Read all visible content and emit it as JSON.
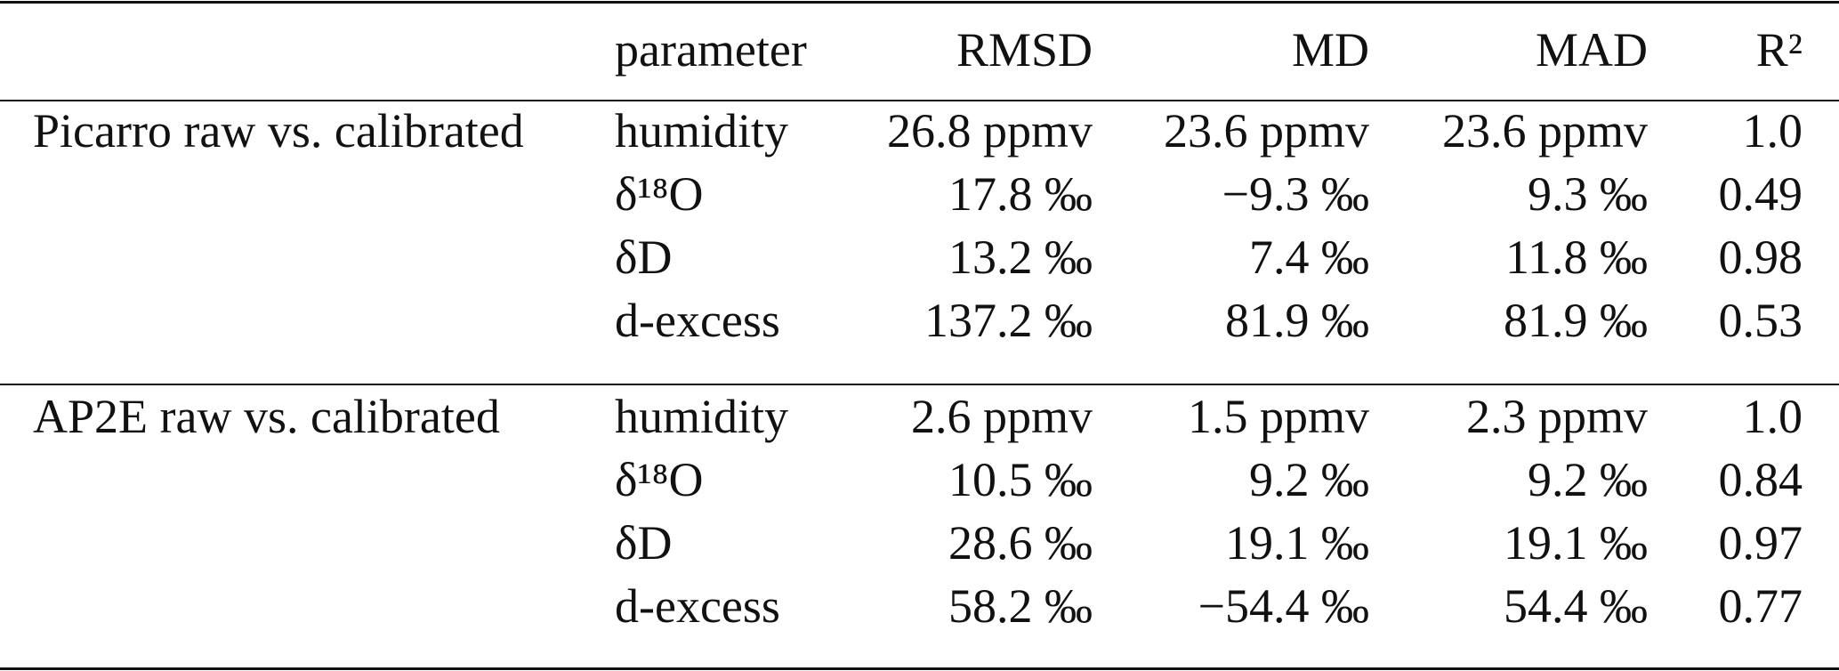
{
  "table": {
    "header": [
      "parameter",
      "RMSD",
      "MD",
      "MAD",
      "R²"
    ],
    "groups": [
      {
        "label": "Picarro raw vs. calibrated",
        "rows": [
          [
            "humidity",
            "26.8 ppmv",
            "23.6 ppmv",
            "23.6 ppmv",
            "1.0"
          ],
          [
            "δ¹⁸O",
            "17.8 ‰",
            "−9.3 ‰",
            "9.3 ‰",
            "0.49"
          ],
          [
            "δD",
            "13.2 ‰",
            "7.4 ‰",
            "11.8 ‰",
            "0.98"
          ],
          [
            "d-excess",
            "137.2 ‰",
            "81.9 ‰",
            "81.9 ‰",
            "0.53"
          ]
        ]
      },
      {
        "label": "AP2E raw vs. calibrated",
        "rows": [
          [
            "humidity",
            "2.6 ppmv",
            "1.5 ppmv",
            "2.3 ppmv",
            "1.0"
          ],
          [
            "δ¹⁸O",
            "10.5 ‰",
            "9.2 ‰",
            "9.2 ‰",
            "0.84"
          ],
          [
            "δD",
            "28.6 ‰",
            "19.1 ‰",
            "19.1 ‰",
            "0.97"
          ],
          [
            "d-excess",
            "58.2 ‰",
            "−54.4 ‰",
            "54.4 ‰",
            "0.77"
          ]
        ]
      }
    ]
  }
}
